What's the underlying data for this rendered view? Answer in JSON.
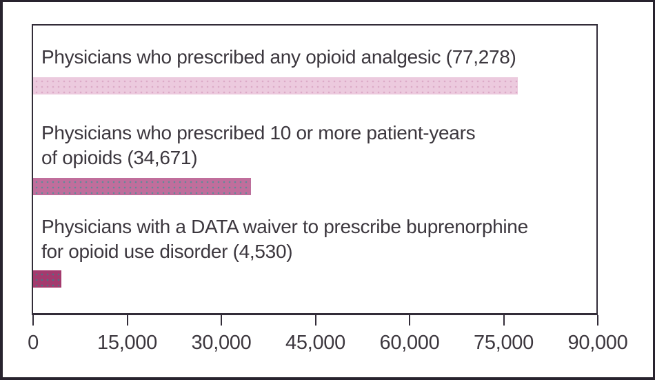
{
  "figure": {
    "background": "#ffffff",
    "outer_border_color": "#28232e",
    "plot_border_color": "#322c38",
    "text_color": "#3c373e"
  },
  "chart_data": {
    "type": "bar",
    "orientation": "horizontal",
    "title": "",
    "xlabel": "",
    "ylabel": "",
    "xlim": [
      0,
      90000
    ],
    "grid": false,
    "legend": false,
    "x_tick_values": [
      0,
      15000,
      30000,
      45000,
      60000,
      75000,
      90000
    ],
    "x_tick_labels": [
      "0",
      "15,000",
      "30,000",
      "45,000",
      "60,000",
      "75,000",
      "90,000"
    ],
    "categories": [
      "Physicians who prescribed any opioid analgesic",
      "Physicians who prescribed 10 or more patient-years of opioids",
      "Physicians with a DATA waiver to prescribe buprenorphine for opioid use disorder"
    ],
    "values": [
      77278,
      34671,
      4530
    ],
    "bars": [
      {
        "label": "Physicians who prescribed any opioid analgesic (77,278)",
        "value": 77278,
        "color": "#eccade",
        "dot_color": "#dcaac7"
      },
      {
        "label": "Physicians who prescribed 10 or more patient-years\nof opioids (34,671)",
        "value": 34671,
        "color": "#c06e9c",
        "dot_color": "#628a99"
      },
      {
        "label": "Physicians with a DATA waiver to prescribe buprenorphine\nfor opioid use disorder (4,530)",
        "value": 4530,
        "color": "#a43a6e",
        "dot_color": "#4a7585"
      }
    ]
  }
}
